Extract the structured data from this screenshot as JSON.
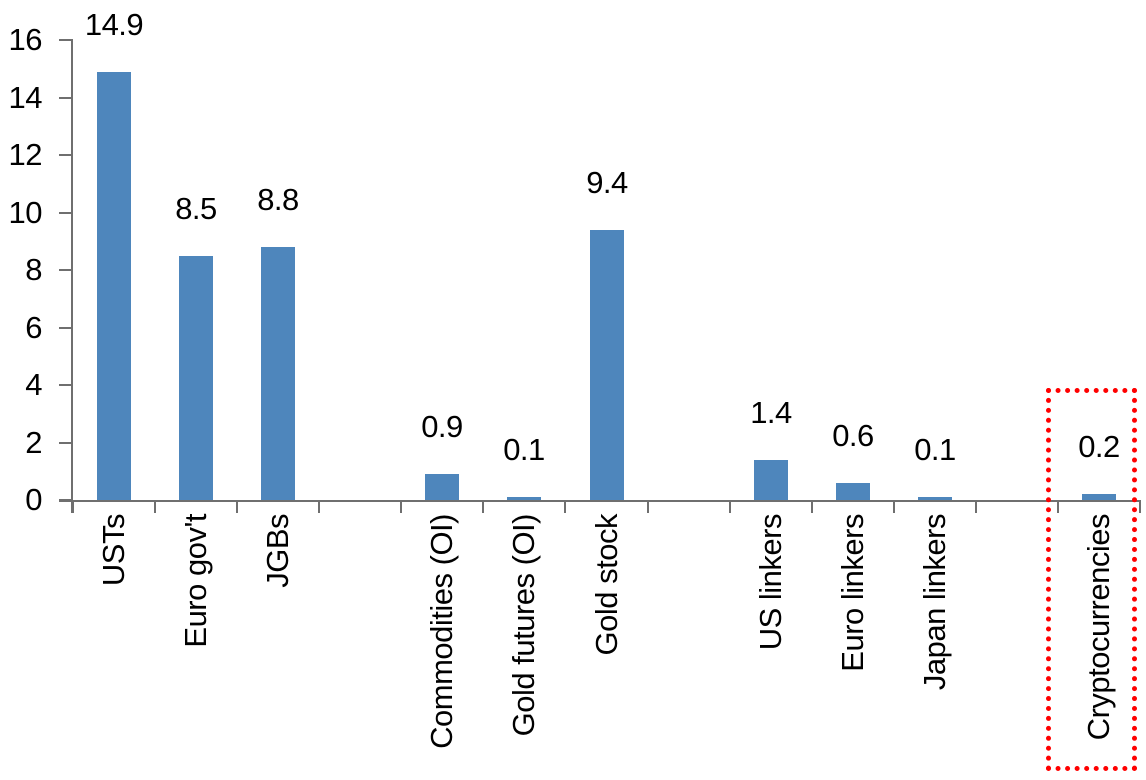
{
  "chart_data": {
    "type": "bar",
    "title": "",
    "xlabel": "",
    "ylabel": "",
    "categories": [
      "USTs",
      "Euro gov't",
      "JGBs",
      "",
      "Commodities (OI)",
      "Gold futures (OI)",
      "Gold stock",
      "",
      "US linkers",
      "Euro linkers",
      "Japan linkers",
      "",
      "Cryptocurrencies"
    ],
    "values": [
      14.9,
      8.5,
      8.8,
      null,
      0.9,
      0.1,
      9.4,
      null,
      1.4,
      0.6,
      0.1,
      null,
      0.2
    ],
    "data_labels": [
      "14.9",
      "8.5",
      "8.8",
      null,
      "0.9",
      "0.1",
      "9.4",
      null,
      "1.4",
      "0.6",
      "0.1",
      null,
      "0.2"
    ],
    "ylim": [
      0,
      16
    ],
    "yticks": [
      0,
      2,
      4,
      6,
      8,
      10,
      12,
      14,
      16
    ],
    "grid": false,
    "legend": false,
    "bar_color": "#4e86bc",
    "axis_color": "#6f6f6f",
    "text_color": "#000000",
    "highlight": {
      "target_category": "Cryptocurrencies",
      "box_color": "#ff0000",
      "border_style": "dotted"
    }
  }
}
